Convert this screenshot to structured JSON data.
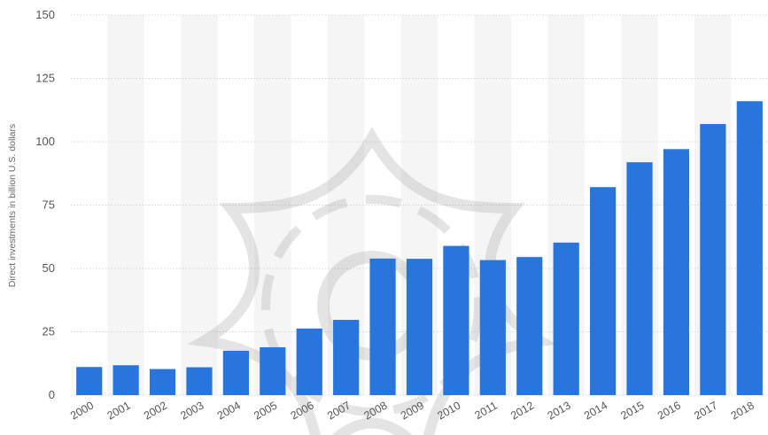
{
  "chart_data": {
    "type": "bar",
    "title": "",
    "xlabel": "",
    "ylabel": "Direct investments in billion U.S. dollars",
    "categories": [
      "2000",
      "2001",
      "2002",
      "2003",
      "2004",
      "2005",
      "2006",
      "2007",
      "2008",
      "2009",
      "2010",
      "2011",
      "2012",
      "2013",
      "2014",
      "2015",
      "2016",
      "2017",
      "2018"
    ],
    "values": [
      11.1,
      11.8,
      10.3,
      11.0,
      17.5,
      18.9,
      26.3,
      29.7,
      53.9,
      53.8,
      58.9,
      53.3,
      54.5,
      60.2,
      82.1,
      91.9,
      97.1,
      107.0,
      116.0
    ],
    "ylim": [
      0,
      150
    ],
    "yticks": [
      "0",
      "25",
      "50",
      "75",
      "100",
      "125",
      "150"
    ],
    "grid": true,
    "legend": "none",
    "colors": {
      "bar": "#2876dd",
      "gridline": "#cfd6de",
      "band": "#f5f5f5",
      "tick_text": "#555555",
      "axis_title": "#666666"
    }
  }
}
